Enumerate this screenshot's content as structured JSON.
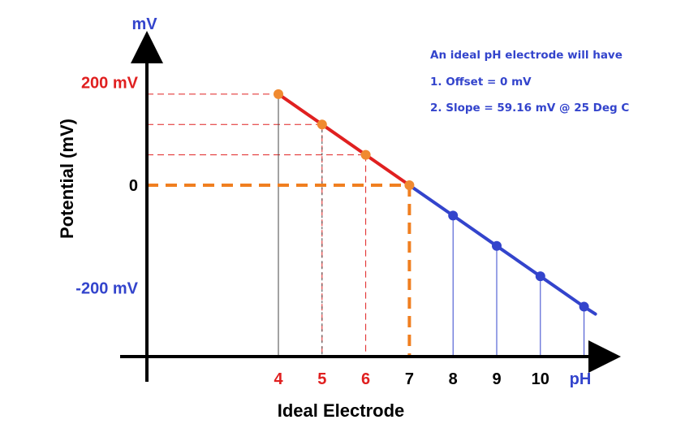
{
  "chart_data": {
    "type": "line",
    "y_axis_label": "Potential (mV)",
    "y_unit_label": "mV",
    "x_axis_label": "Ideal Electrode",
    "x_unit_label": "pH",
    "y_ticks": [
      {
        "value": 200,
        "label": "200 mV",
        "color": "#e02020"
      },
      {
        "value": 0,
        "label": "0",
        "color": "#000000"
      },
      {
        "value": -200,
        "label": "-200 mV",
        "color": "#3344cc"
      }
    ],
    "x_ticks": [
      {
        "value": 4,
        "label": "4",
        "color": "#e02020"
      },
      {
        "value": 5,
        "label": "5",
        "color": "#e02020"
      },
      {
        "value": 6,
        "label": "6",
        "color": "#e02020"
      },
      {
        "value": 7,
        "label": "7",
        "color": "#000000"
      },
      {
        "value": 8,
        "label": "8",
        "color": "#000000"
      },
      {
        "value": 9,
        "label": "9",
        "color": "#000000"
      },
      {
        "value": 10,
        "label": "10",
        "color": "#000000"
      }
    ],
    "series": [
      {
        "color": "#e02020",
        "points": [
          {
            "x": 4,
            "y": 177.48
          },
          {
            "x": 5,
            "y": 118.32
          },
          {
            "x": 6,
            "y": 59.16
          },
          {
            "x": 7,
            "y": 0
          }
        ]
      },
      {
        "color": "#3344cc",
        "points": [
          {
            "x": 7,
            "y": 0
          },
          {
            "x": 8,
            "y": -59.16
          },
          {
            "x": 9,
            "y": -118.32
          },
          {
            "x": 10,
            "y": -177.48
          },
          {
            "x": 11,
            "y": -236.64
          }
        ]
      }
    ],
    "point_colors": {
      "acid": "#f08a30",
      "base": "#3344cc"
    },
    "offset_highlight_color": "#f07f20",
    "annotations": [
      "An ideal pH electrode will have",
      "1. Offset = 0 mV",
      "2. Slope = 59.16 mV @ 25 Deg C"
    ],
    "annotation_color": "#3344cc",
    "xlim": [
      1.7,
      11
    ],
    "ylim": [
      -390,
      200
    ]
  }
}
